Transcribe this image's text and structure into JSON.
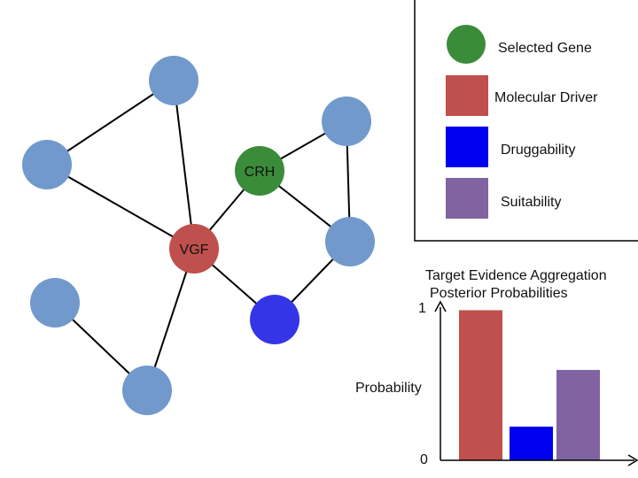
{
  "network": {
    "nodes": [
      {
        "id": "n1",
        "label": "",
        "kind": "gene"
      },
      {
        "id": "n2",
        "label": "",
        "kind": "gene"
      },
      {
        "id": "n3",
        "label": "VGF",
        "kind": "driver"
      },
      {
        "id": "n4",
        "label": "CRH",
        "kind": "selected"
      },
      {
        "id": "n5",
        "label": "",
        "kind": "gene"
      },
      {
        "id": "n6",
        "label": "",
        "kind": "gene"
      },
      {
        "id": "n7",
        "label": "",
        "kind": "druggable"
      },
      {
        "id": "n8",
        "label": "",
        "kind": "gene"
      },
      {
        "id": "n9",
        "label": "",
        "kind": "gene"
      }
    ],
    "edges": [
      [
        "n1",
        "n2"
      ],
      [
        "n1",
        "n3"
      ],
      [
        "n2",
        "n3"
      ],
      [
        "n3",
        "n4"
      ],
      [
        "n3",
        "n7"
      ],
      [
        "n3",
        "n9"
      ],
      [
        "n4",
        "n5"
      ],
      [
        "n4",
        "n6"
      ],
      [
        "n5",
        "n6"
      ],
      [
        "n6",
        "n7"
      ],
      [
        "n8",
        "n9"
      ]
    ]
  },
  "legend": {
    "items": [
      {
        "label": "Selected Gene",
        "color": "#3a8c3a",
        "shape": "circle"
      },
      {
        "label": "Molecular Driver",
        "color": "#c0504d",
        "shape": "square"
      },
      {
        "label": "Druggability",
        "color": "#0000f0",
        "shape": "square"
      },
      {
        "label": "Suitability",
        "color": "#8064a2",
        "shape": "square"
      }
    ]
  },
  "colors": {
    "gene": "#7199cc",
    "driver": "#c0504d",
    "selected": "#3a8c3a",
    "druggable": "#3535e8",
    "edge": "#000000"
  },
  "chart_data": {
    "type": "bar",
    "title": "Target Evidence Aggregation",
    "subtitle": "Posterior Probabilities",
    "ylabel": "Probability",
    "xlabel": "",
    "ylim": [
      0,
      1
    ],
    "yticks": [
      "0",
      "1"
    ],
    "categories": [
      "Molecular Driver",
      "Druggability",
      "Suitability"
    ],
    "values": [
      0.98,
      0.22,
      0.59
    ],
    "colors": [
      "#c0504d",
      "#0000f0",
      "#8064a2"
    ]
  }
}
